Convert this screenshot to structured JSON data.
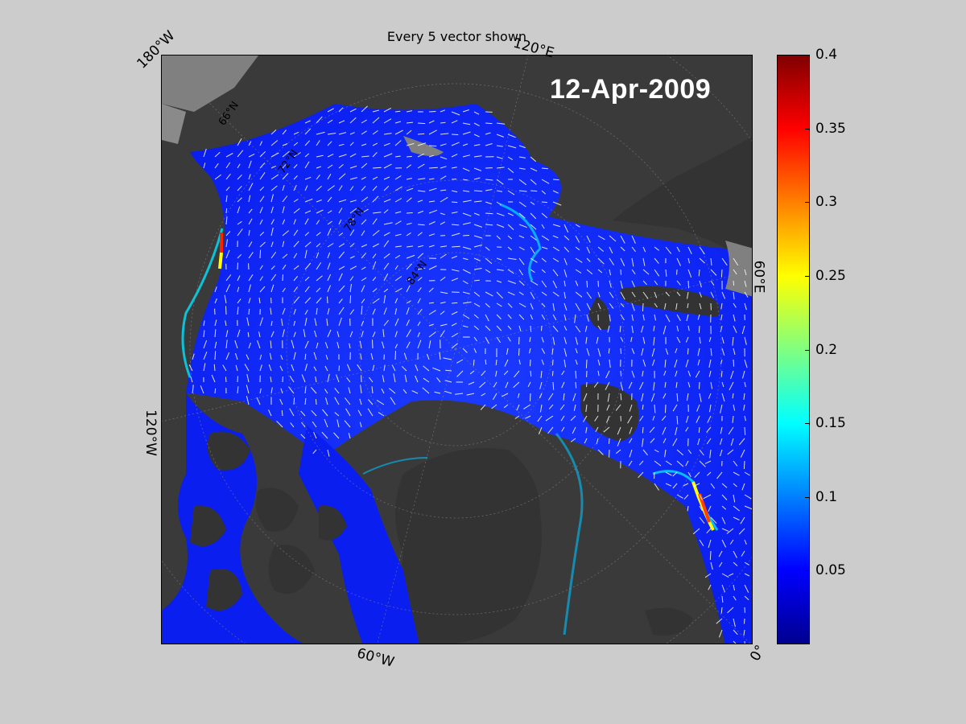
{
  "title": "Every 5 vector shown",
  "date": "12-Apr-2009",
  "longitude_labels": {
    "lon_180w": "180°W",
    "lon_120e": "120°E",
    "lon_60e": "60°E",
    "lon_120w": "120°W",
    "lon_60w": "60°W",
    "lon_0": "0°"
  },
  "latitude_labels": {
    "lat_66n": "66°N",
    "lat_72n": "72°N",
    "lat_78n": "78°N",
    "lat_84n": "84°N"
  },
  "colorbar": {
    "min": 0,
    "max": 0.4,
    "colormap": "jet",
    "ticks": [
      "0.4",
      "0.35",
      "0.3",
      "0.25",
      "0.2",
      "0.15",
      "0.1",
      "0.05"
    ]
  },
  "colors": {
    "background": "#cccccc",
    "land": "#3a3a3a",
    "ice_low": "#0000ff",
    "vector": "#ffffff"
  }
}
